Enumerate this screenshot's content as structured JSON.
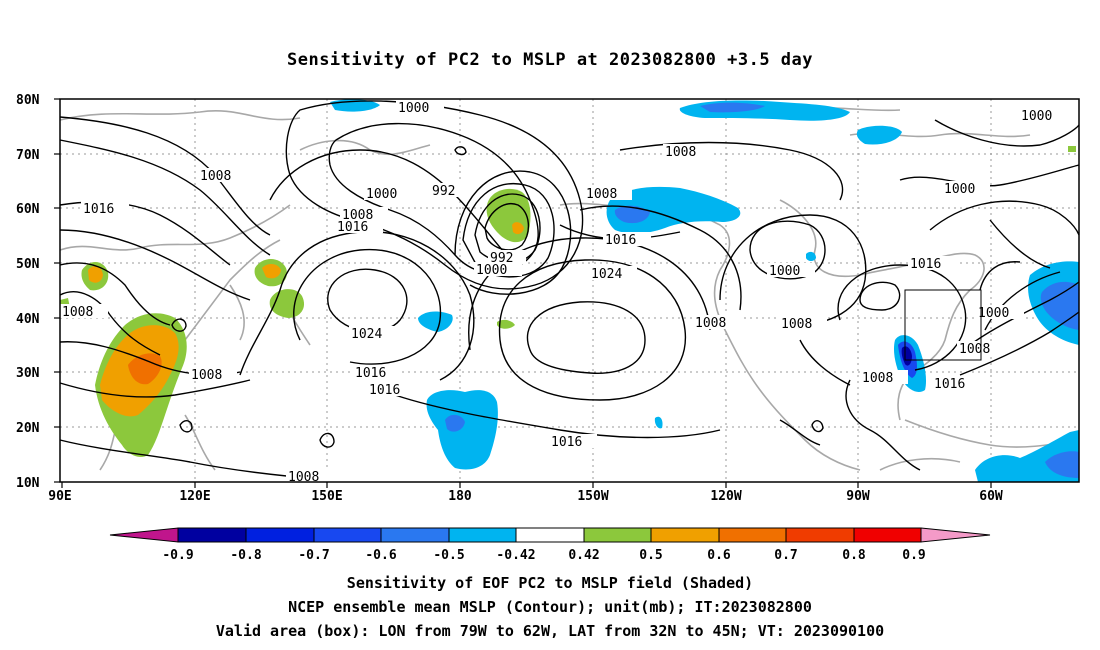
{
  "title": "Sensitivity of PC2 to MSLP at 2023082800 +3.5 day",
  "lat_labels": [
    "80N",
    "70N",
    "60N",
    "50N",
    "40N",
    "30N",
    "20N",
    "10N"
  ],
  "lon_labels": [
    "90E",
    "120E",
    "150E",
    "180",
    "150W",
    "120W",
    "90W",
    "60W"
  ],
  "contour_levels": [
    "1000",
    "1008",
    "1016",
    "1024",
    "992"
  ],
  "colorbar": {
    "labels": [
      "-0.9",
      "-0.8",
      "-0.7",
      "-0.6",
      "-0.5",
      "-0.42",
      "0.42",
      "0.5",
      "0.6",
      "0.7",
      "0.8",
      "0.9"
    ],
    "colors": [
      "#c0158c",
      "#0000a0",
      "#0020e0",
      "#1848f0",
      "#2a78f0",
      "#00b4f0",
      "#ffffff",
      "#8cc83c",
      "#f0a000",
      "#f07000",
      "#f03c00",
      "#f00000",
      "#f49ac8"
    ]
  },
  "captions": {
    "line1": "Sensitivity of EOF PC2 to MSLP field (Shaded)",
    "line2": "NCEP ensemble mean MSLP (Contour); unit(mb); IT:2023082800",
    "line3": "Valid area (box): LON from 79W to 62W, LAT from 32N to 45N; VT: 2023090100"
  }
}
